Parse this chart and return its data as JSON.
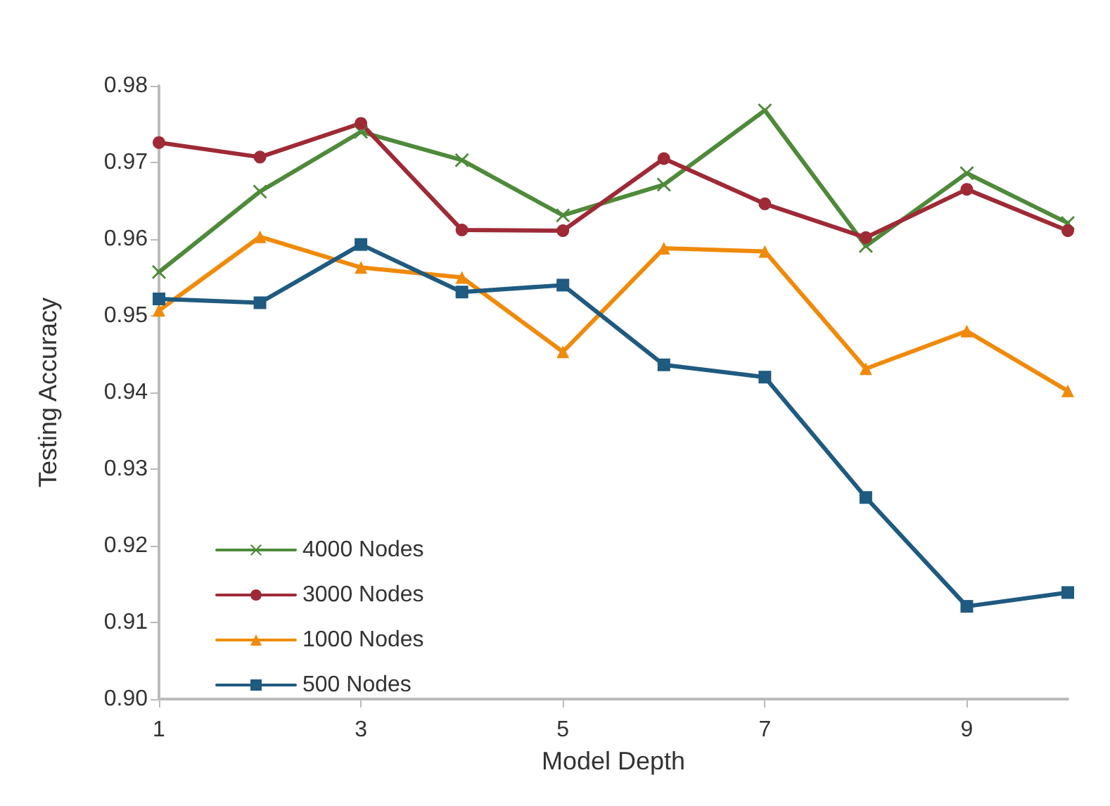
{
  "chart_data": {
    "type": "line",
    "xlabel": "Model Depth",
    "ylabel": "Testing Accuracy",
    "x": [
      1,
      2,
      3,
      4,
      5,
      6,
      7,
      8,
      9,
      10
    ],
    "series": [
      {
        "name": "4000 Nodes",
        "color": "#4e8a3a",
        "marker": "cross",
        "values": [
          0.9557,
          0.9662,
          0.974,
          0.9703,
          0.9631,
          0.9671,
          0.9768,
          0.9591,
          0.9686,
          0.9621
        ]
      },
      {
        "name": "3000 Nodes",
        "color": "#9e2a36",
        "marker": "circle",
        "values": [
          0.9726,
          0.9707,
          0.9751,
          0.9612,
          0.9611,
          0.9705,
          0.9646,
          0.9602,
          0.9665,
          0.9611
        ]
      },
      {
        "name": "1000 Nodes",
        "color": "#f08a0a",
        "marker": "triangle",
        "values": [
          0.9507,
          0.9603,
          0.9563,
          0.955,
          0.9453,
          0.9588,
          0.9584,
          0.9431,
          0.948,
          0.9402
        ]
      },
      {
        "name": "500 Nodes",
        "color": "#1f5a80",
        "marker": "square",
        "values": [
          0.9522,
          0.9517,
          0.9593,
          0.9531,
          0.954,
          0.9436,
          0.942,
          0.9263,
          0.9121,
          0.9139
        ]
      }
    ],
    "xlim": [
      1,
      10
    ],
    "xticks": [
      1,
      3,
      5,
      7,
      9
    ],
    "ylim": [
      0.9,
      0.98
    ],
    "yticks": [
      {
        "value": 0.9,
        "label": "0.90"
      },
      0.91,
      0.92,
      0.93,
      0.94,
      0.95,
      0.96,
      0.97,
      0.98
    ],
    "grid": false,
    "legend": "bottom left",
    "line_style": "solid"
  }
}
